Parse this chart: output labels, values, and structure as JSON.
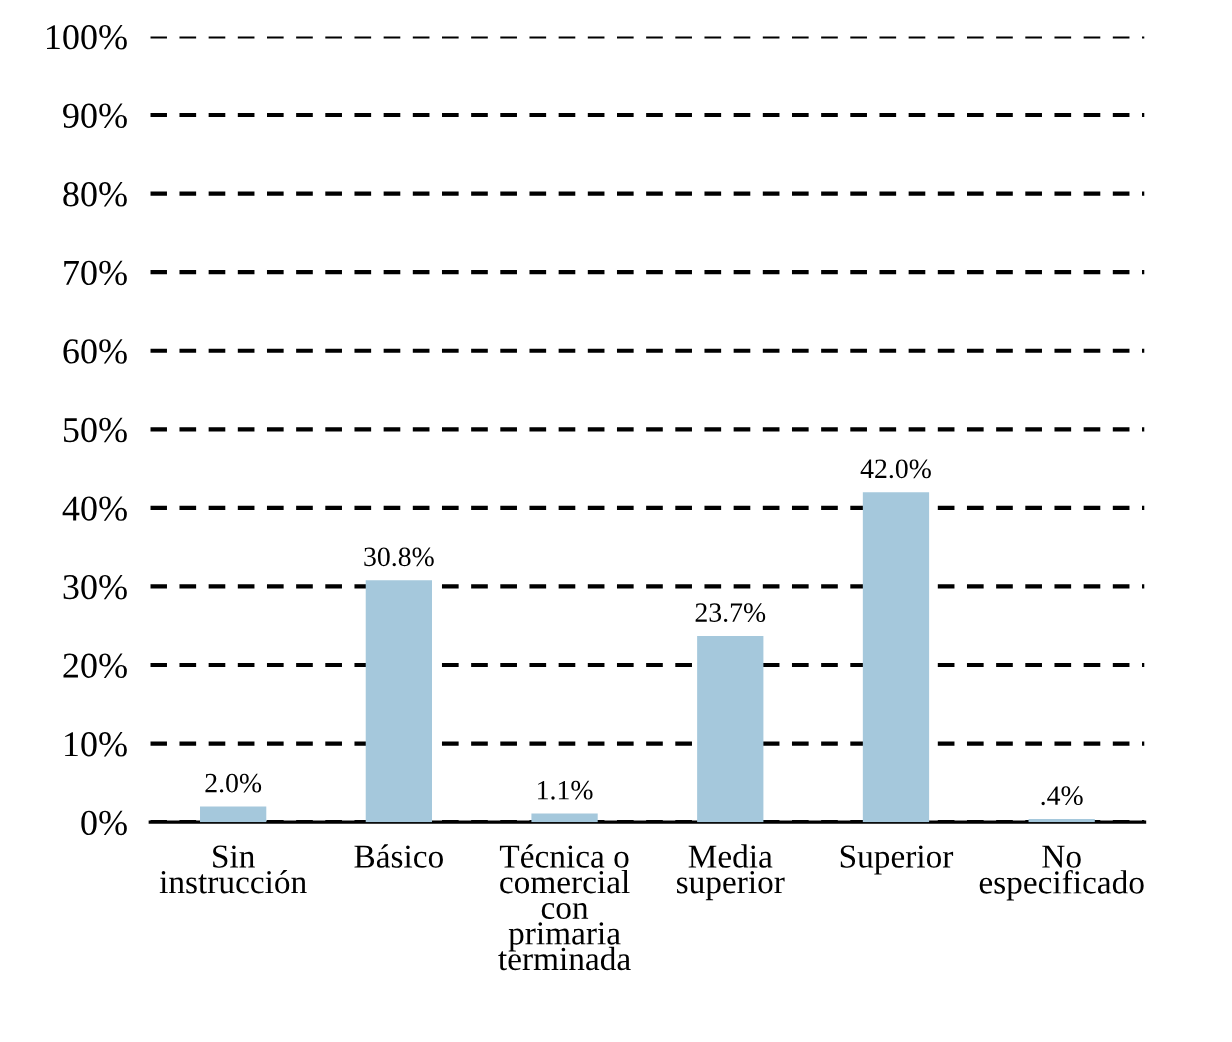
{
  "chart_data": {
    "type": "bar",
    "categories": [
      "Sin\ninstrucción",
      "Básico",
      "Técnica o\ncomercial\ncon\nprimaria\nterminada",
      "Media\nsuperior",
      "Superior",
      "No\nespecificado"
    ],
    "values": [
      2.0,
      30.8,
      1.1,
      23.7,
      42.0,
      0.4
    ],
    "value_labels": [
      "2.0%",
      "30.8%",
      "1.1%",
      "23.7%",
      "42.0%",
      ".4%"
    ],
    "color": "#a5c8dc",
    "ylim": [
      0,
      100
    ],
    "yticks": [
      {
        "value": 0,
        "label": "0%"
      },
      {
        "value": 10,
        "label": "10%"
      },
      {
        "value": 20,
        "label": "20%"
      },
      {
        "value": 30,
        "label": "30%"
      },
      {
        "value": 40,
        "label": "40%"
      },
      {
        "value": 50,
        "label": "50%"
      },
      {
        "value": 60,
        "label": "60%"
      },
      {
        "value": 70,
        "label": "70%"
      },
      {
        "value": 80,
        "label": "80%"
      },
      {
        "value": 90,
        "label": "90%"
      },
      {
        "value": 100,
        "label": "100%"
      }
    ],
    "grid": "y",
    "line_style": "dashed",
    "legend": false
  }
}
